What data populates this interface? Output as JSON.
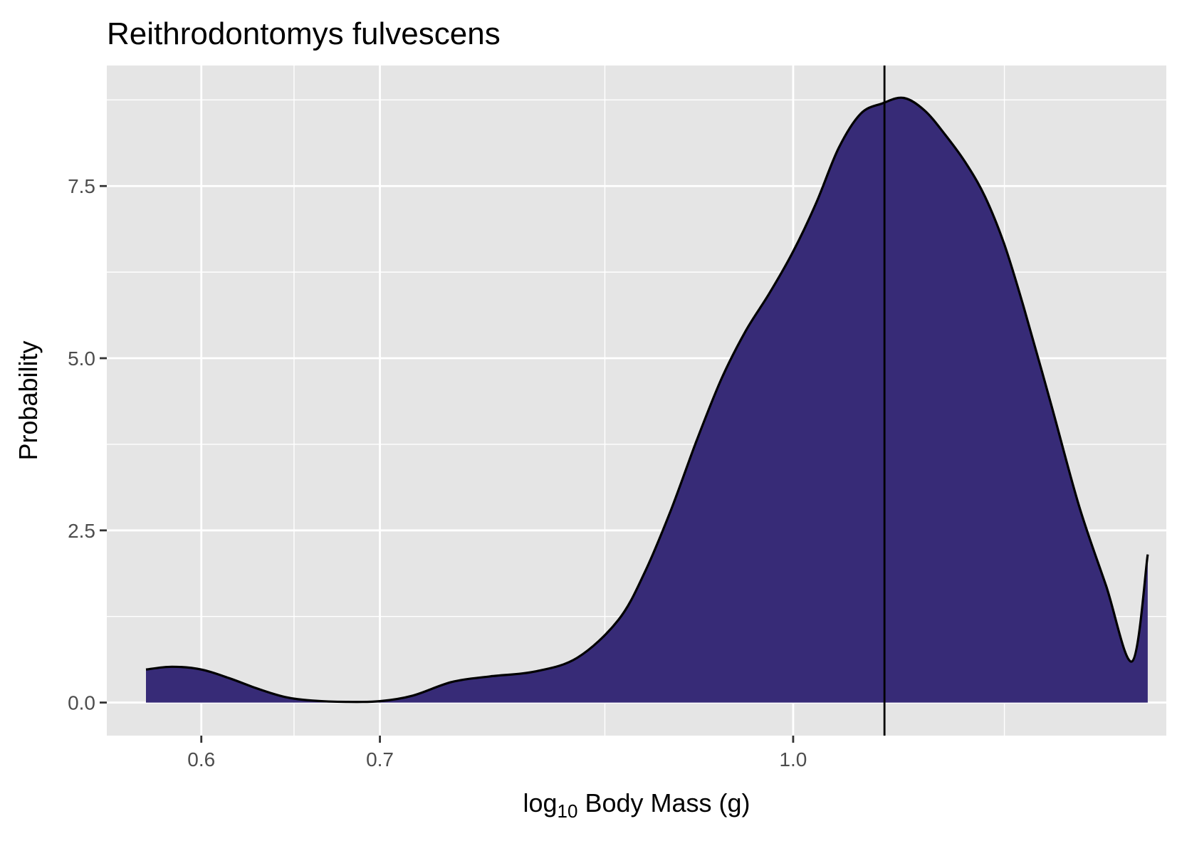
{
  "chart_data": {
    "type": "area",
    "title": "Reithrodontomys fulvescens",
    "xlabel": {
      "prefix": "log",
      "subscript": "10",
      "suffix": " Body Mass (g)"
    },
    "ylabel": "Probability",
    "x_scale": "log10",
    "xlim": [
      0.553,
      1.38
    ],
    "ylim": [
      -0.48,
      9.25
    ],
    "x_ticks": [
      {
        "value": 0.6,
        "label": "0.6"
      },
      {
        "value": 0.7,
        "label": "0.7"
      },
      {
        "value": 1.0,
        "label": "1.0"
      }
    ],
    "x_minor_ticks": [
      0.65,
      0.85,
      1.2
    ],
    "y_ticks": [
      {
        "value": 0.0,
        "label": "0.0"
      },
      {
        "value": 2.5,
        "label": "2.5"
      },
      {
        "value": 5.0,
        "label": "5.0"
      },
      {
        "value": 7.5,
        "label": "7.5"
      }
    ],
    "y_minor_ticks": [
      1.25,
      3.75,
      6.25,
      8.75
    ],
    "grid": true,
    "fill_color": "#372b77",
    "line_color": "#000000",
    "panel_color": "#e5e5e5",
    "vline_x": 1.082,
    "density": {
      "x": [
        0.572,
        0.585,
        0.6,
        0.615,
        0.63,
        0.645,
        0.66,
        0.68,
        0.7,
        0.72,
        0.745,
        0.77,
        0.8,
        0.83,
        0.86,
        0.88,
        0.9,
        0.92,
        0.94,
        0.96,
        0.98,
        1.0,
        1.02,
        1.04,
        1.06,
        1.08,
        1.1,
        1.12,
        1.14,
        1.16,
        1.18,
        1.2,
        1.22,
        1.25,
        1.28,
        1.31,
        1.34,
        1.358
      ],
      "y": [
        0.48,
        0.52,
        0.48,
        0.35,
        0.2,
        0.08,
        0.03,
        0.01,
        0.02,
        0.1,
        0.3,
        0.38,
        0.45,
        0.65,
        1.2,
        1.9,
        2.8,
        3.8,
        4.7,
        5.4,
        5.95,
        6.55,
        7.25,
        8.05,
        8.55,
        8.7,
        8.78,
        8.6,
        8.25,
        7.85,
        7.35,
        6.65,
        5.75,
        4.3,
        2.85,
        1.7,
        0.6,
        2.15
      ]
    }
  }
}
